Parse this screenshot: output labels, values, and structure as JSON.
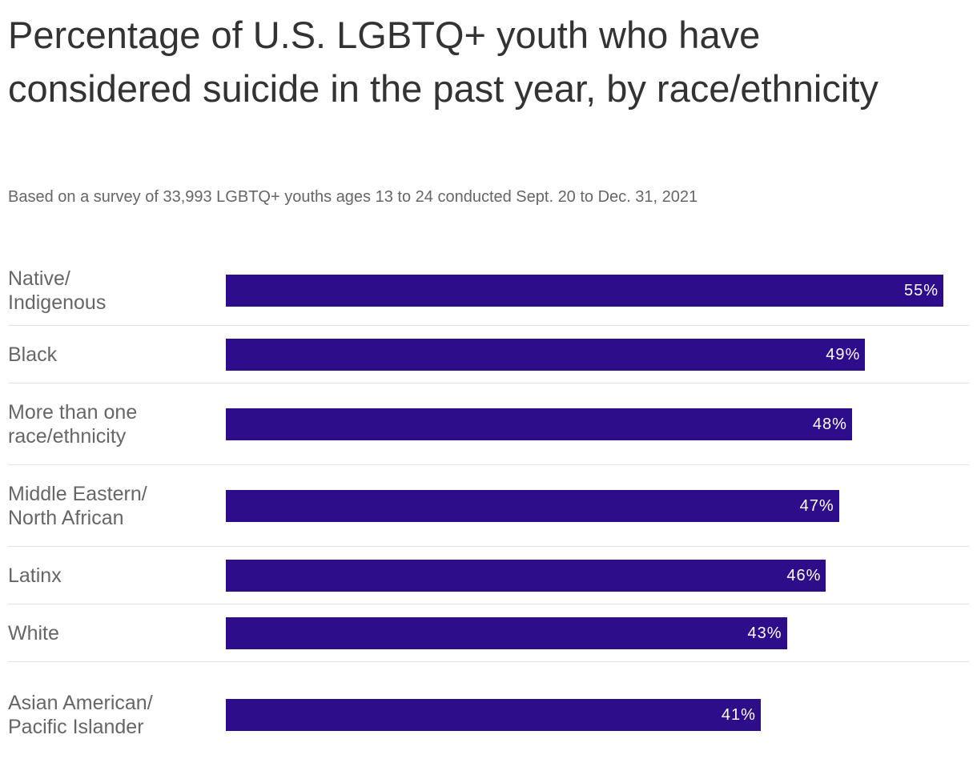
{
  "chart_data": {
    "type": "bar",
    "orientation": "horizontal",
    "title": "Percentage of U.S. LGBTQ+ youth who have considered suicide in the past year, by race/ethnicity",
    "subtitle": "Based on a survey of 33,993 LGBTQ+ youths ages 13 to 24 conducted Sept. 20 to Dec. 31, 2021",
    "categories": [
      "Native/ Indigenous",
      "Black",
      "More than one race/ethnicity",
      "Middle Eastern/ North African",
      "Latinx",
      "White",
      "Asian American/ Pacific Islander"
    ],
    "values": [
      55,
      49,
      48,
      47,
      46,
      43,
      41
    ],
    "data_labels": [
      "55%",
      "49%",
      "48%",
      "47%",
      "46%",
      "43%",
      "41%"
    ],
    "xlim": [
      0,
      55
    ],
    "grid": false,
    "bar_color": "#2e0d8a"
  }
}
